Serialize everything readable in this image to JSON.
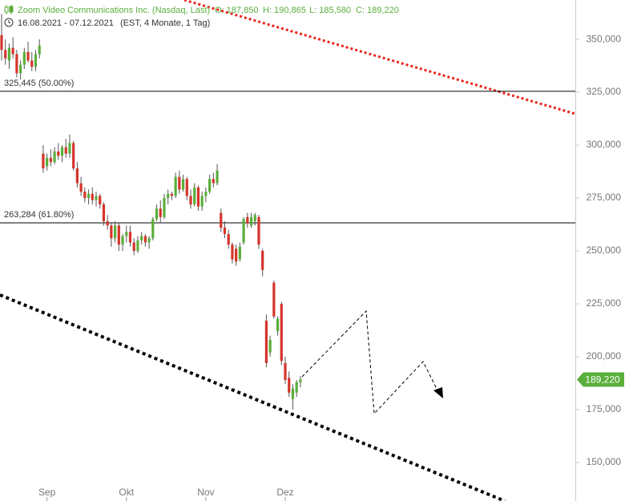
{
  "chart_data": {
    "type": "candlestick",
    "header": {
      "title": "Zoom Video Communications Inc. (Nasdaq, Last)",
      "open": "O: 187,850",
      "high": "H: 190,865",
      "low": "L: 185,580",
      "close": "C: 189,220",
      "range": "16.08.2021 - 07.12.2021",
      "info": "(EST, 4 Monate, 1 Tag)"
    },
    "categories": [
      null,
      null,
      null,
      null,
      null,
      null,
      null,
      null,
      null,
      null,
      null,
      null,
      "Sep",
      null,
      null,
      null,
      null,
      null,
      null,
      null,
      null,
      null,
      null,
      null,
      null,
      null,
      null,
      null,
      null,
      null,
      null,
      null,
      null,
      "Okt",
      null,
      null,
      null,
      null,
      null,
      null,
      null,
      null,
      null,
      null,
      null,
      null,
      null,
      null,
      null,
      null,
      null,
      null,
      null,
      null,
      "Nov",
      null,
      null,
      null,
      null,
      null,
      null,
      null,
      null,
      null,
      null,
      null,
      null,
      null,
      null,
      null,
      null,
      null,
      null,
      null,
      null,
      "Dez",
      null,
      null,
      null,
      null
    ],
    "open": [
      352000,
      345000,
      340000,
      346000,
      343000,
      334000,
      338000,
      344000,
      340000,
      337000,
      343000,
      296000,
      290000,
      294000,
      292000,
      297000,
      295000,
      299000,
      296000,
      301000,
      289000,
      282000,
      278000,
      275000,
      277000,
      274000,
      276000,
      272000,
      264000,
      262000,
      256000,
      262000,
      253000,
      257000,
      259000,
      254000,
      250000,
      255000,
      257000,
      254000,
      256000,
      265000,
      270000,
      266000,
      275000,
      277000,
      276000,
      285000,
      279000,
      284000,
      276000,
      272000,
      280000,
      271000,
      276000,
      278000,
      284000,
      282000,
      268000,
      261000,
      258000,
      253000,
      251000,
      246000,
      254000,
      266000,
      262000,
      264000,
      266000,
      250000,
      217000,
      202000,
      235000,
      212000,
      225000,
      197000,
      190000,
      180000,
      183000,
      187850
    ],
    "high": [
      362000,
      350000,
      348000,
      351000,
      345000,
      340000,
      346000,
      349000,
      344000,
      345000,
      350000,
      300000,
      296000,
      298000,
      299000,
      301000,
      300000,
      303000,
      305000,
      302000,
      292000,
      285000,
      280000,
      279000,
      280000,
      278000,
      277000,
      273000,
      267000,
      263000,
      264000,
      263000,
      258000,
      262000,
      262000,
      256000,
      257000,
      259000,
      258000,
      257000,
      266000,
      272000,
      274000,
      277000,
      279000,
      278000,
      287000,
      288000,
      286000,
      285000,
      279000,
      282000,
      281000,
      278000,
      280000,
      286000,
      287000,
      291000,
      270000,
      264000,
      260000,
      254000,
      253000,
      254000,
      266000,
      268000,
      268000,
      268000,
      267000,
      251000,
      220000,
      210000,
      236000,
      219000,
      226000,
      200000,
      193000,
      187000,
      189000,
      190865
    ],
    "low": [
      340000,
      338000,
      336000,
      341000,
      332000,
      331000,
      336000,
      339000,
      335000,
      335000,
      341000,
      287000,
      288000,
      290000,
      291000,
      293000,
      292000,
      294000,
      294000,
      288000,
      280000,
      276000,
      273000,
      272000,
      272000,
      271000,
      270000,
      262000,
      260000,
      252000,
      254000,
      250000,
      250000,
      254000,
      252000,
      248000,
      249000,
      253000,
      252000,
      251000,
      255000,
      264000,
      263000,
      265000,
      272000,
      274000,
      275000,
      277000,
      278000,
      274000,
      270000,
      271000,
      269000,
      269000,
      273000,
      277000,
      280000,
      281000,
      259000,
      256000,
      251000,
      244000,
      243000,
      245000,
      253000,
      261000,
      261000,
      262000,
      251000,
      238000,
      195000,
      200000,
      218000,
      210000,
      196000,
      187000,
      181000,
      175000,
      181000,
      185580
    ],
    "close": [
      345000,
      341000,
      346000,
      343000,
      334000,
      338000,
      344000,
      340000,
      337000,
      343000,
      347000,
      289000,
      294000,
      292000,
      297000,
      295000,
      299000,
      296000,
      301000,
      289000,
      282000,
      278000,
      275000,
      277000,
      274000,
      276000,
      272000,
      264000,
      262000,
      256000,
      262000,
      253000,
      257000,
      259000,
      254000,
      250000,
      255000,
      257000,
      254000,
      256000,
      265000,
      270000,
      266000,
      275000,
      277000,
      276000,
      285000,
      279000,
      284000,
      276000,
      272000,
      280000,
      271000,
      276000,
      278000,
      284000,
      282000,
      288000,
      261000,
      258000,
      253000,
      246000,
      245000,
      252000,
      265000,
      263000,
      266000,
      267000,
      253000,
      241000,
      197000,
      208000,
      219000,
      218000,
      198000,
      189000,
      183000,
      185000,
      188000,
      189220
    ],
    "up_color": "#5aae3c",
    "down_color": "#d5342b",
    "ylim": [
      131800,
      368600
    ],
    "yticks": [
      {
        "value": 150000,
        "label": "150,000"
      },
      {
        "value": 175000,
        "label": "175,000"
      },
      {
        "value": 200000,
        "label": "200,000"
      },
      {
        "value": 225000,
        "label": "225,000"
      },
      {
        "value": 250000,
        "label": "250,000"
      },
      {
        "value": 275000,
        "label": "275,000"
      },
      {
        "value": 300000,
        "label": "300,000"
      },
      {
        "value": 325000,
        "label": "325,000"
      },
      {
        "value": 350000,
        "label": "350,000"
      }
    ],
    "fib_levels": [
      {
        "value": 325445,
        "label": "325,445 (50.00%)"
      },
      {
        "value": 263284,
        "label": "263,284 (61.80%)"
      }
    ],
    "last_price": {
      "value": 189220,
      "label": "189,220"
    }
  }
}
